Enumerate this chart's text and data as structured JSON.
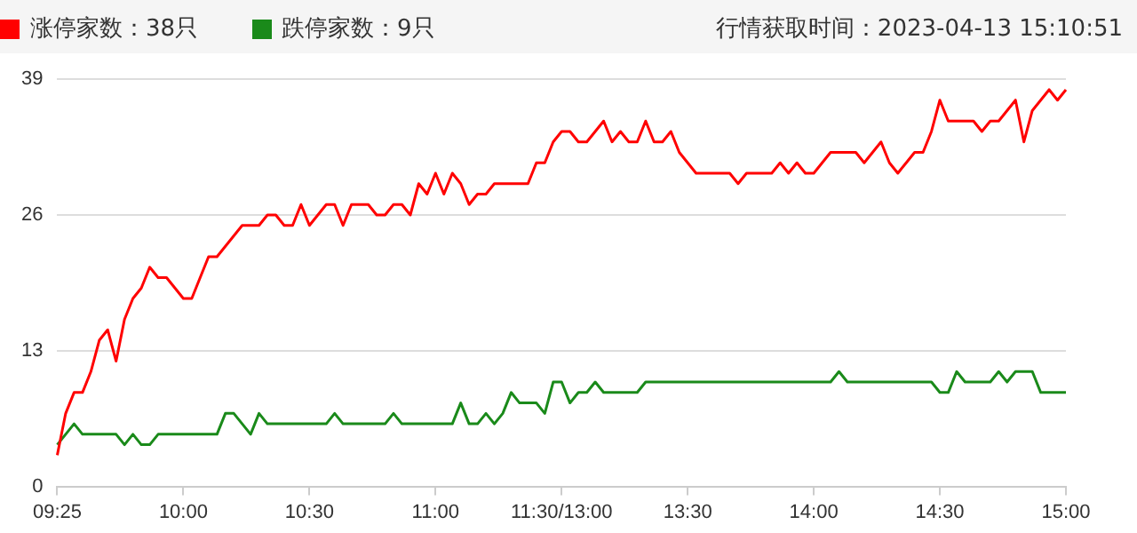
{
  "chart_data": {
    "type": "line",
    "categories": [
      "09:25",
      null,
      null,
      null,
      null,
      null,
      null,
      null,
      null,
      null,
      null,
      null,
      null,
      null,
      null,
      "10:00",
      null,
      null,
      null,
      null,
      null,
      null,
      null,
      null,
      null,
      null,
      null,
      null,
      null,
      null,
      "10:30",
      null,
      null,
      null,
      null,
      null,
      null,
      null,
      null,
      null,
      null,
      null,
      null,
      null,
      null,
      "11:00",
      null,
      null,
      null,
      null,
      null,
      null,
      null,
      null,
      null,
      null,
      null,
      null,
      null,
      null,
      "11:30/13:00",
      null,
      null,
      null,
      null,
      null,
      null,
      null,
      null,
      null,
      null,
      null,
      null,
      null,
      null,
      "13:30",
      null,
      null,
      null,
      null,
      null,
      null,
      null,
      null,
      null,
      null,
      null,
      null,
      null,
      null,
      "14:00",
      null,
      null,
      null,
      null,
      null,
      null,
      null,
      null,
      null,
      null,
      null,
      null,
      null,
      null,
      "14:30",
      null,
      null,
      null,
      null,
      null,
      null,
      null,
      null,
      null,
      null,
      null,
      null,
      null,
      null,
      "15:00"
    ],
    "series": [
      {
        "name": "涨停家数：38只",
        "color": "#ff0000",
        "values": [
          3,
          7,
          9,
          9,
          11,
          14,
          15,
          12,
          16,
          18,
          19,
          21,
          20,
          20,
          19,
          18,
          18,
          20,
          22,
          22,
          23,
          24,
          25,
          25,
          25,
          26,
          26,
          25,
          25,
          27,
          25,
          26,
          27,
          27,
          25,
          27,
          27,
          27,
          26,
          26,
          27,
          27,
          26,
          29,
          28,
          30,
          28,
          30,
          29,
          27,
          28,
          28,
          29,
          29,
          29,
          29,
          29,
          31,
          31,
          33,
          34,
          34,
          33,
          33,
          34,
          35,
          33,
          34,
          33,
          33,
          35,
          33,
          33,
          34,
          32,
          31,
          30,
          30,
          30,
          30,
          30,
          29,
          30,
          30,
          30,
          30,
          31,
          30,
          31,
          30,
          30,
          31,
          32,
          32,
          32,
          32,
          31,
          32,
          33,
          31,
          30,
          31,
          32,
          32,
          34,
          37,
          35,
          35,
          35,
          35,
          34,
          35,
          35,
          36,
          37,
          33,
          36,
          37,
          38,
          37,
          38
        ]
      },
      {
        "name": "跌停家数：9只",
        "color": "#1a8a1a",
        "values": [
          4,
          5,
          6,
          5,
          5,
          5,
          5,
          5,
          4,
          5,
          4,
          4,
          5,
          5,
          5,
          5,
          5,
          5,
          5,
          5,
          7,
          7,
          6,
          5,
          7,
          6,
          6,
          6,
          6,
          6,
          6,
          6,
          6,
          7,
          6,
          6,
          6,
          6,
          6,
          6,
          7,
          6,
          6,
          6,
          6,
          6,
          6,
          6,
          8,
          6,
          6,
          7,
          6,
          7,
          9,
          8,
          8,
          8,
          7,
          10,
          10,
          8,
          9,
          9,
          10,
          9,
          9,
          9,
          9,
          9,
          10,
          10,
          10,
          10,
          10,
          10,
          10,
          10,
          10,
          10,
          10,
          10,
          10,
          10,
          10,
          10,
          10,
          10,
          10,
          10,
          10,
          10,
          10,
          11,
          10,
          10,
          10,
          10,
          10,
          10,
          10,
          10,
          10,
          10,
          10,
          9,
          9,
          11,
          10,
          10,
          10,
          10,
          11,
          10,
          11,
          11,
          11,
          9,
          9,
          9,
          9
        ]
      }
    ],
    "ylim": [
      0,
      39
    ],
    "yticks": [
      0,
      13,
      26,
      39
    ],
    "grid": "y",
    "legend": "top left",
    "marker": "none",
    "line_style": "solid",
    "annotations": [
      "行情获取时间：2023-04-13 15:10:51"
    ]
  }
}
